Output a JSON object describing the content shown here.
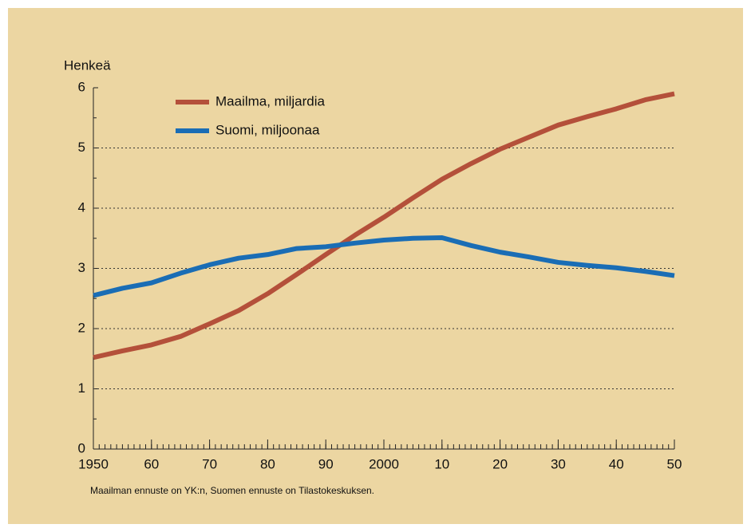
{
  "chart_data": {
    "type": "line",
    "y_label": "Henkeä",
    "note": "Maailman ennuste on YK:n, Suomen ennuste on Tilastokeskuksen.",
    "x": [
      1950,
      1955,
      1960,
      1965,
      1970,
      1975,
      1980,
      1985,
      1990,
      1995,
      2000,
      2005,
      2010,
      2015,
      2020,
      2025,
      2030,
      2035,
      2040,
      2045,
      2050
    ],
    "series": [
      {
        "name": "Maailma, miljardia",
        "color": "#b4503a",
        "values": [
          1.52,
          1.63,
          1.73,
          1.87,
          2.08,
          2.3,
          2.58,
          2.9,
          3.23,
          3.55,
          3.85,
          4.17,
          4.48,
          4.74,
          4.98,
          5.18,
          5.38,
          5.52,
          5.65,
          5.8,
          5.9
        ]
      },
      {
        "name": "Suomi, miljoonaa",
        "color": "#1a6db5",
        "values": [
          2.55,
          2.67,
          2.76,
          2.92,
          3.06,
          3.17,
          3.23,
          3.33,
          3.36,
          3.42,
          3.47,
          3.5,
          3.51,
          3.38,
          3.27,
          3.19,
          3.1,
          3.05,
          3.01,
          2.95,
          2.88
        ]
      }
    ],
    "xlim": [
      1950,
      2050
    ],
    "xticks": [
      1950,
      {
        "value": 1960,
        "label": "60"
      },
      {
        "value": 1970,
        "label": "70"
      },
      {
        "value": 1980,
        "label": "80"
      },
      {
        "value": 1990,
        "label": "90"
      },
      2000,
      {
        "value": 2010,
        "label": "10"
      },
      {
        "value": 2020,
        "label": "20"
      },
      {
        "value": 2030,
        "label": "30"
      },
      {
        "value": 2040,
        "label": "40"
      },
      {
        "value": 2050,
        "label": "50"
      }
    ],
    "ylim": [
      0,
      6
    ],
    "yticks": [
      0,
      1,
      2,
      3,
      4,
      5,
      6
    ],
    "grid": true,
    "legend": "top-left"
  }
}
